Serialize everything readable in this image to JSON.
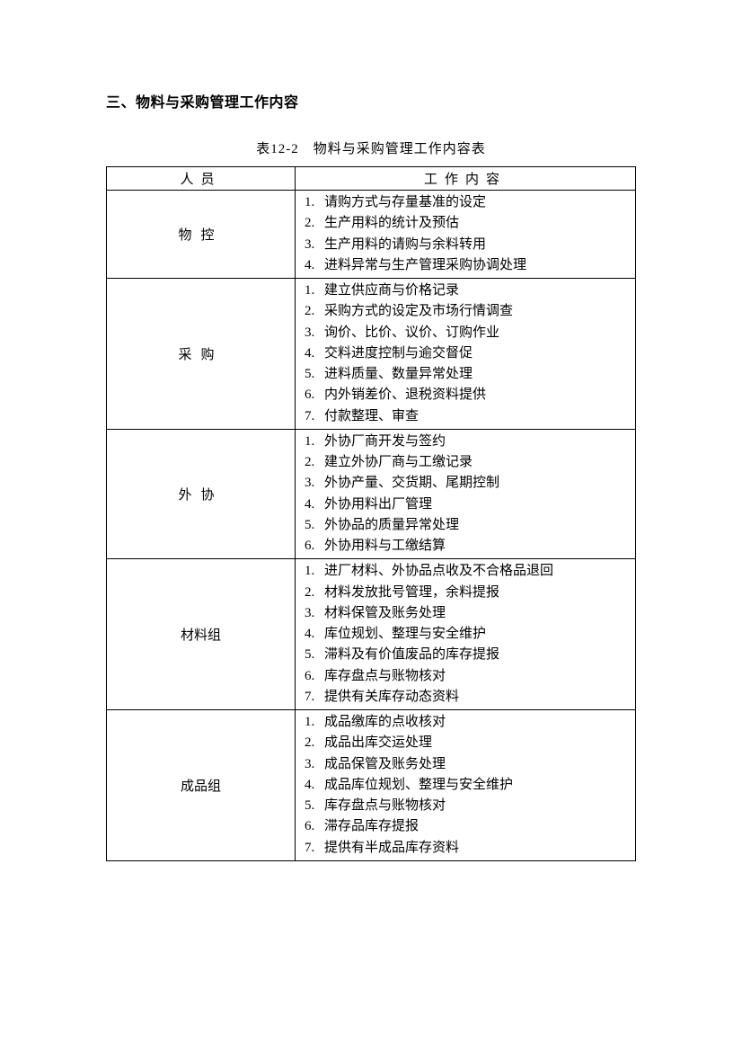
{
  "heading": "三、物料与采购管理工作内容",
  "caption": "表12-2　物料与采购管理工作内容表",
  "headers": {
    "role": "人员",
    "content": "工作内容"
  },
  "rows": [
    {
      "role": "物控",
      "spacing": "wide",
      "items": [
        "请购方式与存量基准的设定",
        "生产用料的统计及预估",
        "生产用料的请购与余料转用",
        "进料异常与生产管理采购协调处理"
      ]
    },
    {
      "role": "采购",
      "spacing": "wide",
      "items": [
        "建立供应商与价格记录",
        "采购方式的设定及市场行情调查",
        "询价、比价、议价、订购作业",
        "交料进度控制与逾交督促",
        "进料质量、数量异常处理",
        "内外销差价、退税资料提供",
        "付款整理、审查"
      ]
    },
    {
      "role": "外协",
      "spacing": "wide",
      "items": [
        "外协厂商开发与签约",
        "建立外协厂商与工缴记录",
        "外协产量、交货期、尾期控制",
        "外协用料出厂管理",
        "外协品的质量异常处理",
        "外协用料与工缴结算"
      ]
    },
    {
      "role": "材料组",
      "spacing": "tight",
      "items": [
        "进厂材料、外协品点收及不合格品退回",
        "材料发放批号管理，余料提报",
        "材料保管及账务处理",
        "库位规划、整理与安全维护",
        "滞料及有价值废品的库存提报",
        "库存盘点与账物核对",
        "提供有关库存动态资料"
      ]
    },
    {
      "role": "成品组",
      "spacing": "tight",
      "items": [
        "成品缴库的点收核对",
        "成品出库交运处理",
        "成品保管及账务处理",
        "成品库位规划、整理与安全维护",
        "库存盘点与账物核对",
        "滞存品库存提报",
        "提供有半成品库存资料"
      ]
    }
  ]
}
